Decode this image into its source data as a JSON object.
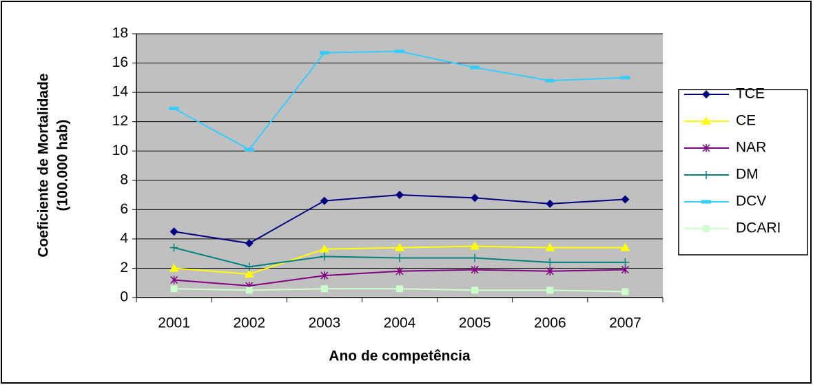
{
  "chart_data": {
    "type": "line",
    "xlabel": "Ano de competência",
    "ylabel": [
      "Coeficiente de Mortalidade",
      "(100.000 hab)"
    ],
    "categories": [
      "2001",
      "2002",
      "2003",
      "2004",
      "2005",
      "2006",
      "2007"
    ],
    "ylim": [
      0,
      18
    ],
    "yticks": [
      0,
      2,
      4,
      6,
      8,
      10,
      12,
      14,
      16,
      18
    ],
    "grid": true,
    "legend": "right",
    "series": [
      {
        "name": "TCE",
        "color": "#000080",
        "marker": "diamond",
        "values": [
          4.5,
          3.7,
          6.6,
          7.0,
          6.8,
          6.4,
          6.7
        ]
      },
      {
        "name": "CE",
        "color": "#ffff00",
        "marker": "triangle",
        "values": [
          2.0,
          1.6,
          3.3,
          3.4,
          3.5,
          3.4,
          3.4
        ]
      },
      {
        "name": "NAR",
        "color": "#800080",
        "marker": "star",
        "values": [
          1.2,
          0.8,
          1.5,
          1.8,
          1.9,
          1.8,
          1.9
        ]
      },
      {
        "name": "DM",
        "color": "#008080",
        "marker": "plus",
        "values": [
          3.4,
          2.1,
          2.8,
          2.7,
          2.7,
          2.4,
          2.4
        ]
      },
      {
        "name": "DCV",
        "color": "#33ccff",
        "marker": "dash",
        "values": [
          12.9,
          10.1,
          16.7,
          16.8,
          15.7,
          14.8,
          15.0
        ]
      },
      {
        "name": "DCARI",
        "color": "#ccffcc",
        "marker": "square",
        "values": [
          0.6,
          0.5,
          0.6,
          0.6,
          0.5,
          0.5,
          0.4
        ]
      }
    ]
  }
}
